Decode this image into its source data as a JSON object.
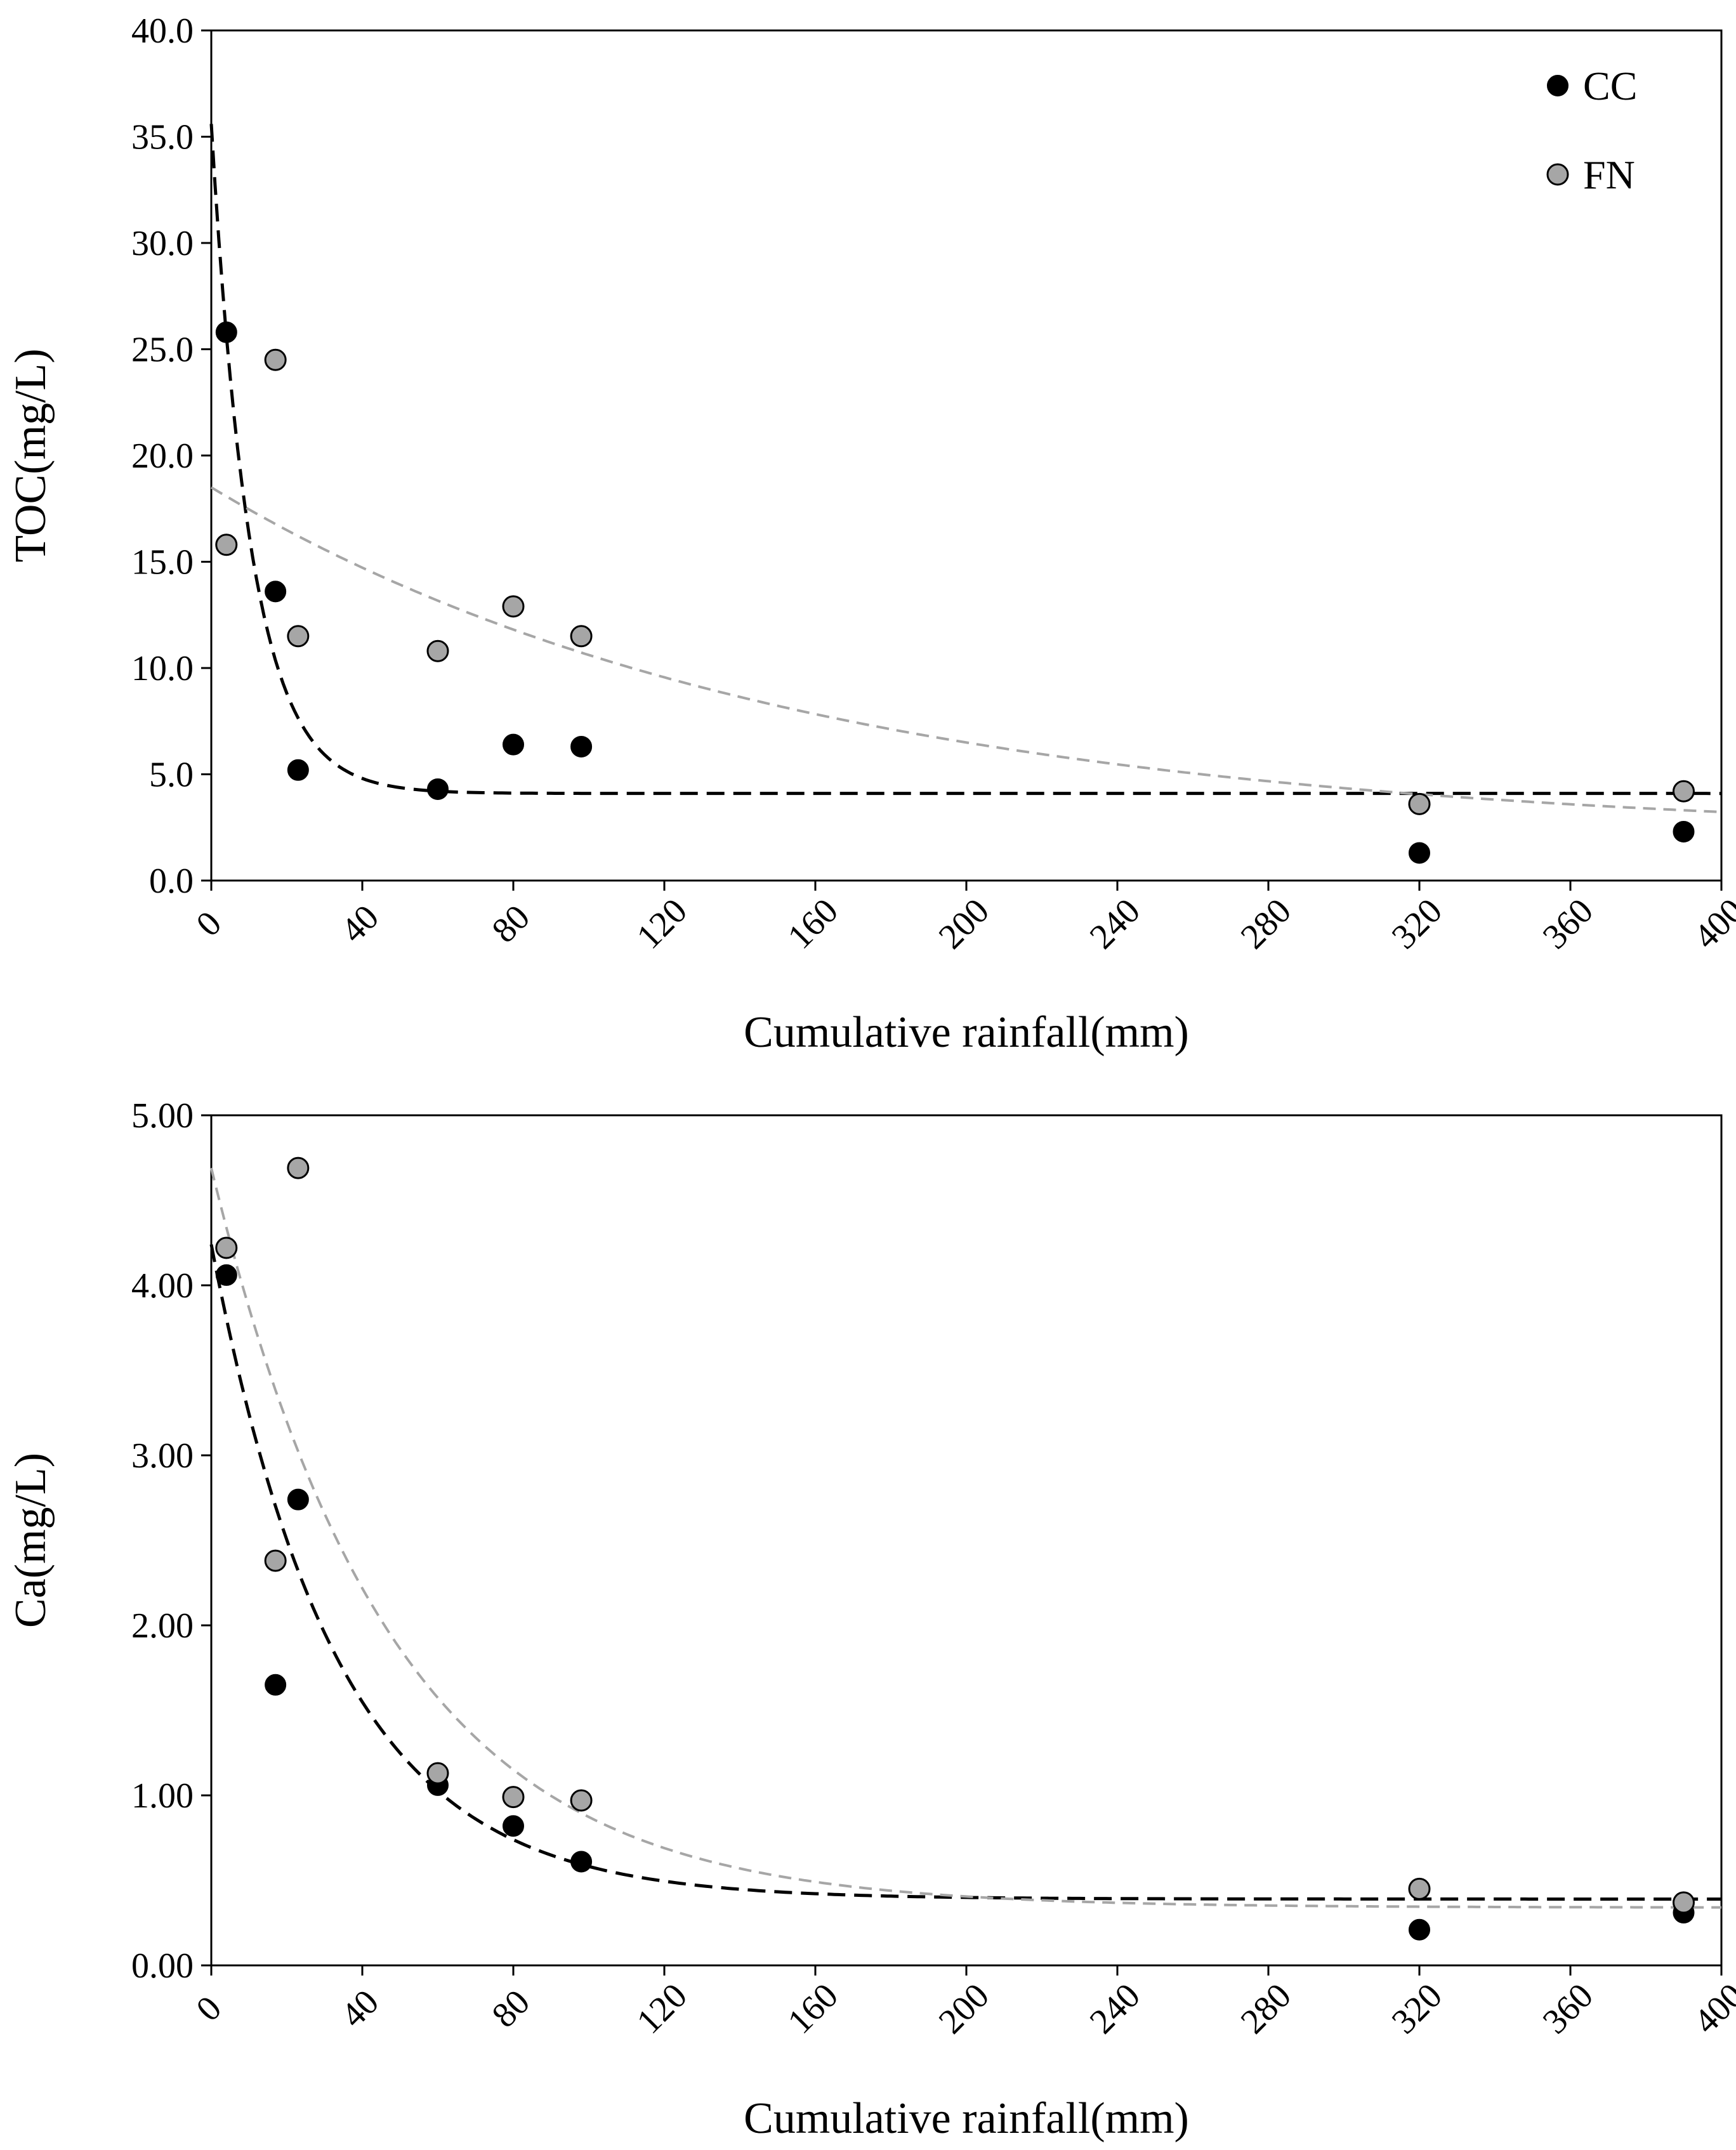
{
  "colors": {
    "cc_marker": "#000000",
    "fn_marker": "#a6a6a6",
    "cc_fit": "#000000",
    "fn_fit": "#a6a6a6",
    "axis": "#000000"
  },
  "chart_data": [
    {
      "type": "scatter",
      "id": "toc",
      "title": "",
      "xlabel": "Cumulative rainfall(mm)",
      "ylabel": "TOC(mg/L)",
      "xlim": [
        0,
        400
      ],
      "ylim": [
        0,
        40
      ],
      "x_ticks": [
        "0",
        "40",
        "80",
        "120",
        "160",
        "200",
        "240",
        "280",
        "320",
        "360",
        "400"
      ],
      "y_ticks": [
        "0.0",
        "5.0",
        "10.0",
        "15.0",
        "20.0",
        "25.0",
        "30.0",
        "35.0",
        "40.0"
      ],
      "legend": {
        "position": "top-right",
        "entries": [
          "CC",
          "FN"
        ]
      },
      "series": [
        {
          "name": "CC",
          "points": [
            [
              4,
              25.8
            ],
            [
              17,
              13.6
            ],
            [
              23,
              5.2
            ],
            [
              60,
              4.3
            ],
            [
              80,
              6.4
            ],
            [
              98,
              6.3
            ],
            [
              320,
              1.3
            ],
            [
              390,
              2.3
            ]
          ],
          "fit": {
            "style": "dashed",
            "model": "exponential decay",
            "a": 31.5,
            "k": 0.095,
            "c": 4.1
          }
        },
        {
          "name": "FN",
          "points": [
            [
              4,
              15.8
            ],
            [
              17,
              24.5
            ],
            [
              23,
              11.5
            ],
            [
              60,
              10.8
            ],
            [
              80,
              12.9
            ],
            [
              98,
              11.5
            ],
            [
              320,
              3.6
            ],
            [
              390,
              4.2
            ]
          ],
          "fit": {
            "style": "dashed",
            "model": "exponential decay",
            "a": 16.5,
            "k": 0.0065,
            "c": 2.0
          }
        }
      ]
    },
    {
      "type": "scatter",
      "id": "ca",
      "title": "",
      "xlabel": "Cumulative rainfall(mm)",
      "ylabel": "Ca(mg/L)",
      "xlim": [
        0,
        400
      ],
      "ylim": [
        0,
        5
      ],
      "x_ticks": [
        "0",
        "40",
        "80",
        "120",
        "160",
        "200",
        "240",
        "280",
        "320",
        "360",
        "400"
      ],
      "y_ticks": [
        "0.00",
        "1.00",
        "2.00",
        "3.00",
        "4.00",
        "5.00"
      ],
      "series": [
        {
          "name": "CC",
          "points": [
            [
              4,
              4.06
            ],
            [
              17,
              1.65
            ],
            [
              23,
              2.74
            ],
            [
              60,
              1.06
            ],
            [
              80,
              0.82
            ],
            [
              98,
              0.61
            ],
            [
              320,
              0.21
            ],
            [
              390,
              0.31
            ]
          ],
          "fit": {
            "style": "dashed",
            "model": "exponential decay",
            "a": 3.85,
            "k": 0.03,
            "c": 0.39
          }
        },
        {
          "name": "FN",
          "points": [
            [
              4,
              4.22
            ],
            [
              17,
              2.38
            ],
            [
              23,
              4.69
            ],
            [
              60,
              1.13
            ],
            [
              80,
              0.99
            ],
            [
              98,
              0.97
            ],
            [
              320,
              0.45
            ],
            [
              390,
              0.37
            ]
          ],
          "fit": {
            "style": "dashed",
            "model": "exponential decay",
            "a": 4.35,
            "k": 0.021,
            "c": 0.34
          }
        }
      ]
    }
  ]
}
